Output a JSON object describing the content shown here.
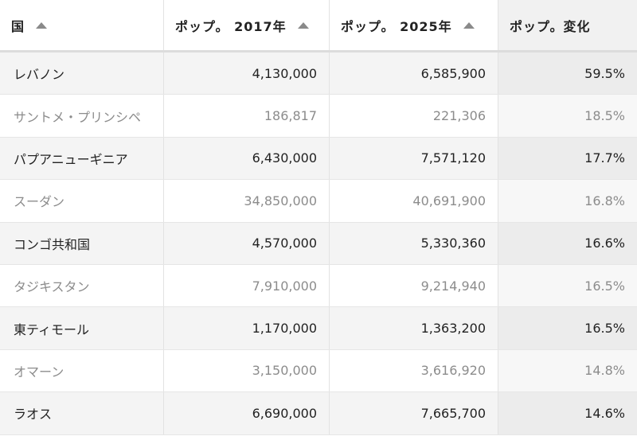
{
  "table": {
    "columns": [
      {
        "label": "国",
        "sort_icon": "triangle-up-icon"
      },
      {
        "label": "ポップ。 2017年",
        "sort_icon": "triangle-up-icon"
      },
      {
        "label": "ポップ。 2025年",
        "sort_icon": "triangle-up-icon"
      },
      {
        "label": "ポップ。変化"
      }
    ],
    "rows": [
      {
        "country": "レバノン",
        "pop2017": "4,130,000",
        "pop2025": "6,585,900",
        "change": "59.5%"
      },
      {
        "country": "サントメ・プリンシペ",
        "pop2017": "186,817",
        "pop2025": "221,306",
        "change": "18.5%"
      },
      {
        "country": "パプアニューギニア",
        "pop2017": "6,430,000",
        "pop2025": "7,571,120",
        "change": "17.7%"
      },
      {
        "country": "スーダン",
        "pop2017": "34,850,000",
        "pop2025": "40,691,900",
        "change": "16.8%"
      },
      {
        "country": "コンゴ共和国",
        "pop2017": "4,570,000",
        "pop2025": "5,330,360",
        "change": "16.6%"
      },
      {
        "country": "タジキスタン",
        "pop2017": "7,910,000",
        "pop2025": "9,214,940",
        "change": "16.5%"
      },
      {
        "country": "東ティモール",
        "pop2017": "1,170,000",
        "pop2025": "1,363,200",
        "change": "16.5%"
      },
      {
        "country": "オマーン",
        "pop2017": "3,150,000",
        "pop2025": "3,616,920",
        "change": "14.8%"
      },
      {
        "country": "ラオス",
        "pop2017": "6,690,000",
        "pop2025": "7,665,700",
        "change": "14.6%"
      }
    ]
  }
}
